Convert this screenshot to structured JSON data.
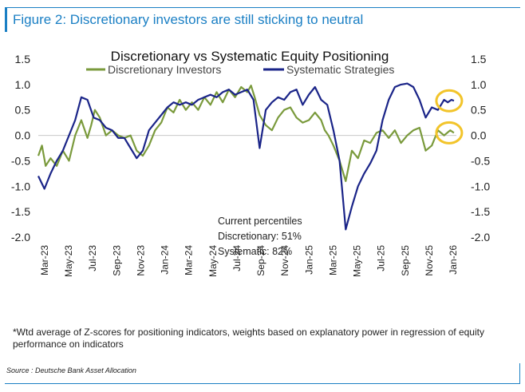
{
  "figure": {
    "title": "Figure 2: Discretionary investors are still sticking to neutral",
    "footnote": "*Wtd average of Z-scores for positioning indicators, weights based on explanatory power in regression of equity performance on indicators",
    "source": "Source : Deutsche Bank Asset Allocation"
  },
  "annotation": {
    "title": "Current percentiles",
    "discretionary": "Discretionary: 51%",
    "systematic": "Systematic: 82%"
  },
  "colors": {
    "discretionary": "#7a9a3c",
    "systematic": "#1a2488",
    "highlight": "#f2c42a",
    "accent": "#1a7fc4"
  },
  "chart_data": {
    "type": "line",
    "title": "Discretionary  vs Systematic Equity Positioning",
    "xlabel": "",
    "ylabel": "",
    "ylim": [
      -2.0,
      1.5
    ],
    "yticks": [
      "1.5",
      "1.0",
      "0.5",
      "0.0",
      "-0.5",
      "-1.0",
      "-1.5",
      "-2.0"
    ],
    "xlim": [
      0,
      34
    ],
    "x_tick_labels": [
      "Mar-23",
      "May-23",
      "Jul-23",
      "Sep-23",
      "Nov-23",
      "Jan-24",
      "Mar-24",
      "May-24",
      "Jul-24",
      "Sep-24",
      "Nov-24",
      "Jan-25",
      "Mar-25",
      "May-25",
      "Jul-25",
      "Sep-25",
      "Nov-25",
      "Jan-26"
    ],
    "legend": [
      "Discretionary Investors",
      "Systematic Strategies"
    ],
    "series": [
      {
        "name": "Discretionary Investors",
        "x": [
          0,
          0.3,
          0.6,
          1,
          1.5,
          2,
          2.5,
          3,
          3.5,
          4,
          4.3,
          4.6,
          5,
          5.5,
          6,
          6.5,
          7,
          7.5,
          8,
          8.5,
          9,
          9.5,
          10,
          10.5,
          11,
          11.5,
          12,
          12.5,
          13,
          13.5,
          14,
          14.5,
          15,
          15.5,
          16,
          16.5,
          17,
          17.3,
          17.6,
          18,
          18.5,
          19,
          19.5,
          20,
          20.5,
          21,
          21.5,
          22,
          22.5,
          23,
          23.3,
          23.6,
          24,
          24.5,
          25,
          25.5,
          26,
          26.5,
          27,
          27.5,
          28,
          28.5,
          29,
          29.5,
          30,
          30.5,
          31,
          31.5,
          32,
          32.5,
          33,
          33.5,
          33.8
        ],
        "values": [
          -0.4,
          -0.2,
          -0.6,
          -0.45,
          -0.6,
          -0.3,
          -0.5,
          0.0,
          0.3,
          -0.05,
          0.2,
          0.5,
          0.35,
          0.0,
          0.1,
          0.0,
          -0.05,
          0.0,
          -0.3,
          -0.4,
          -0.2,
          0.1,
          0.25,
          0.55,
          0.45,
          0.7,
          0.5,
          0.65,
          0.5,
          0.75,
          0.6,
          0.85,
          0.65,
          0.9,
          0.75,
          0.95,
          0.85,
          0.98,
          0.75,
          0.4,
          0.2,
          0.1,
          0.35,
          0.5,
          0.55,
          0.35,
          0.25,
          0.3,
          0.45,
          0.3,
          0.1,
          0.0,
          -0.2,
          -0.5,
          -0.9,
          -0.3,
          -0.45,
          -0.1,
          -0.15,
          0.05,
          0.1,
          -0.05,
          0.1,
          -0.15,
          0.0,
          0.1,
          0.15,
          -0.3,
          -0.2,
          0.1,
          0.0,
          0.1,
          0.05
        ]
      },
      {
        "name": "Systematic Strategies",
        "x": [
          0,
          0.5,
          1,
          1.5,
          2,
          2.5,
          3,
          3.5,
          4,
          4.5,
          5,
          5.5,
          6,
          6.5,
          7,
          7.5,
          8,
          8.5,
          9,
          9.5,
          10,
          10.5,
          11,
          11.5,
          12,
          12.5,
          13,
          13.5,
          14,
          14.5,
          15,
          15.5,
          16,
          16.5,
          17,
          17.5,
          18,
          18.5,
          19,
          19.5,
          20,
          20.5,
          21,
          21.5,
          22,
          22.5,
          23,
          23.5,
          24,
          24.5,
          25,
          25.5,
          26,
          26.5,
          27,
          27.5,
          28,
          28.5,
          29,
          29.5,
          30,
          30.5,
          31,
          31.5,
          32,
          32.5,
          33,
          33.3,
          33.6,
          33.8
        ],
        "values": [
          -0.8,
          -1.05,
          -0.75,
          -0.5,
          -0.3,
          0.0,
          0.3,
          0.75,
          0.7,
          0.35,
          0.3,
          0.15,
          0.1,
          -0.05,
          -0.05,
          -0.25,
          -0.45,
          -0.3,
          0.1,
          0.25,
          0.4,
          0.55,
          0.65,
          0.6,
          0.65,
          0.6,
          0.7,
          0.75,
          0.8,
          0.75,
          0.85,
          0.9,
          0.8,
          0.85,
          0.9,
          0.7,
          -0.25,
          0.5,
          0.65,
          0.75,
          0.7,
          0.85,
          0.9,
          0.6,
          0.8,
          0.95,
          0.7,
          0.6,
          0.1,
          -0.5,
          -1.85,
          -1.4,
          -1.0,
          -0.75,
          -0.55,
          -0.3,
          0.3,
          0.7,
          0.95,
          1.0,
          1.02,
          0.95,
          0.7,
          0.35,
          0.55,
          0.5,
          0.7,
          0.65,
          0.7,
          0.68
        ]
      }
    ]
  }
}
